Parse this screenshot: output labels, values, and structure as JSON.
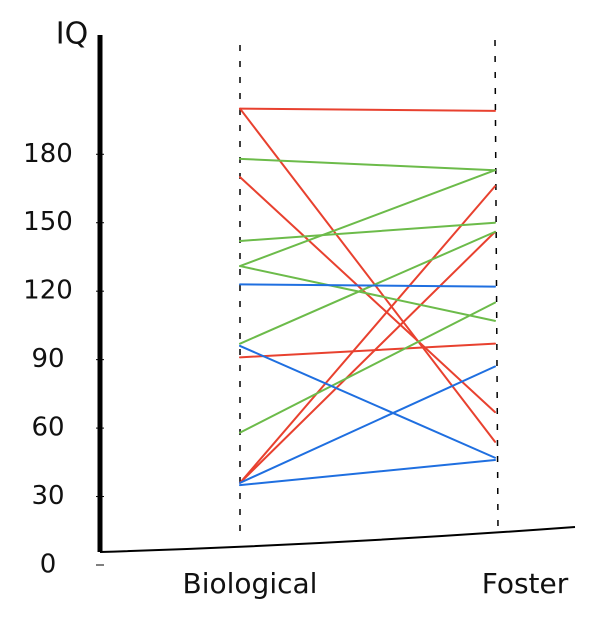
{
  "chart_data": {
    "type": "line",
    "y_label": "IQ",
    "categories": [
      "Biological",
      "Foster"
    ],
    "ylim": [
      0,
      220
    ],
    "yticks": [
      0,
      30,
      60,
      90,
      120,
      150,
      180
    ],
    "series": [
      {
        "color": "#e8412f",
        "values": [
          200,
          199
        ]
      },
      {
        "color": "#e8412f",
        "values": [
          200,
          54
        ]
      },
      {
        "color": "#e8412f",
        "values": [
          170,
          67
        ]
      },
      {
        "color": "#e8412f",
        "values": [
          91,
          97
        ]
      },
      {
        "color": "#e8412f",
        "values": [
          36,
          166
        ]
      },
      {
        "color": "#e8412f",
        "values": [
          36,
          146
        ]
      },
      {
        "color": "#6cbb4a",
        "values": [
          178,
          173
        ]
      },
      {
        "color": "#6cbb4a",
        "values": [
          142,
          150
        ]
      },
      {
        "color": "#6cbb4a",
        "values": [
          131,
          173
        ]
      },
      {
        "color": "#6cbb4a",
        "values": [
          131,
          107
        ]
      },
      {
        "color": "#6cbb4a",
        "values": [
          97,
          146
        ]
      },
      {
        "color": "#6cbb4a",
        "values": [
          58,
          115
        ]
      },
      {
        "color": "#1f6fe0",
        "values": [
          123,
          122
        ]
      },
      {
        "color": "#1f6fe0",
        "values": [
          96,
          47
        ]
      },
      {
        "color": "#1f6fe0",
        "values": [
          36,
          87
        ]
      },
      {
        "color": "#1f6fe0",
        "values": [
          35,
          46
        ]
      }
    ]
  }
}
